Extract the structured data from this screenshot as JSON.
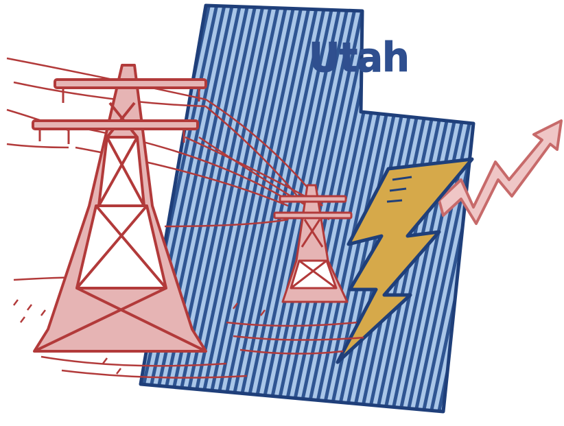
{
  "label": {
    "state_name": "Utah"
  },
  "colors": {
    "state_fill": "#a9c6e8",
    "state_hatch": "#2f5592",
    "state_outline": "#1f3f7a",
    "label_text": "#2f4f8f",
    "tower": "#b23a3a",
    "tower_light": "#e6b4b4",
    "bolt": "#d6a94a",
    "bolt_outline": "#1f3f7a",
    "arrow": "#c76a6a",
    "arrow_light": "#efc6c6"
  },
  "icons": {
    "state_shape": "utah-state-icon",
    "large_tower": "transmission-tower-icon",
    "small_tower": "transmission-tower-icon",
    "bolt": "lightning-bolt-icon",
    "arrow": "upward-trend-arrow-icon"
  }
}
